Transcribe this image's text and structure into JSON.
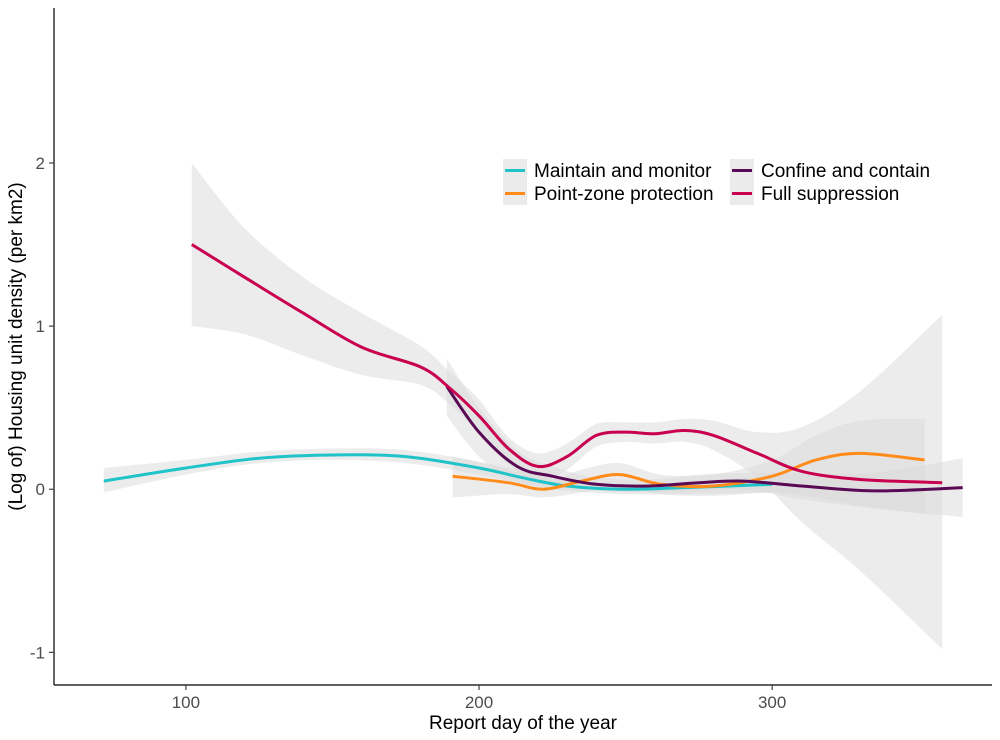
{
  "chart_data": {
    "type": "line",
    "title": "",
    "xlabel": "Report day of the year",
    "ylabel": "(Log of) Housing unit density (per km2)",
    "xlim": [
      55,
      375
    ],
    "ylim": [
      -1.2,
      2.95
    ],
    "x_ticks": [
      100,
      200,
      300
    ],
    "x_tick_labels": [
      "100",
      "200",
      "300"
    ],
    "y_ticks": [
      -1,
      0,
      1,
      2
    ],
    "y_tick_labels": [
      "-1",
      "0",
      "1",
      "2"
    ],
    "grid": false,
    "legend_position": "top-right",
    "series": [
      {
        "name": "Maintain and monitor",
        "color": "#1fc3c8",
        "x": [
          72,
          100,
          125,
          150,
          175,
          200,
          215,
          230,
          250,
          270,
          300
        ],
        "y": [
          0.05,
          0.13,
          0.19,
          0.21,
          0.2,
          0.13,
          0.07,
          0.02,
          0.0,
          0.01,
          0.03
        ],
        "lower": [
          -0.02,
          0.09,
          0.16,
          0.18,
          0.16,
          0.09,
          0.03,
          -0.01,
          -0.03,
          -0.03,
          -0.02
        ],
        "upper": [
          0.13,
          0.18,
          0.23,
          0.25,
          0.24,
          0.17,
          0.11,
          0.05,
          0.03,
          0.05,
          0.08
        ]
      },
      {
        "name": "Point-zone protection",
        "color": "#ff8c1a",
        "x": [
          191,
          210,
          222,
          235,
          248,
          262,
          280,
          300,
          315,
          330,
          352
        ],
        "y": [
          0.08,
          0.04,
          0.0,
          0.05,
          0.09,
          0.03,
          0.02,
          0.08,
          0.18,
          0.22,
          0.18
        ],
        "lower": [
          -0.05,
          -0.03,
          -0.05,
          -0.02,
          0.02,
          -0.03,
          -0.04,
          -0.02,
          -0.05,
          -0.1,
          -0.15
        ],
        "upper": [
          0.2,
          0.12,
          0.05,
          0.12,
          0.16,
          0.09,
          0.09,
          0.18,
          0.33,
          0.42,
          0.43
        ]
      },
      {
        "name": "Confine and contain",
        "color": "#5a0a55",
        "x": [
          189,
          200,
          213,
          225,
          240,
          258,
          275,
          290,
          310,
          335,
          365
        ],
        "y": [
          0.63,
          0.35,
          0.14,
          0.08,
          0.03,
          0.02,
          0.04,
          0.05,
          0.02,
          -0.01,
          0.01
        ],
        "lower": [
          0.45,
          0.2,
          0.05,
          0.02,
          -0.01,
          -0.02,
          -0.01,
          0.0,
          -0.06,
          -0.12,
          -0.17
        ],
        "upper": [
          0.8,
          0.5,
          0.24,
          0.14,
          0.07,
          0.06,
          0.09,
          0.1,
          0.1,
          0.1,
          0.19
        ]
      },
      {
        "name": "Full suppression",
        "color": "#c8004f",
        "x": [
          102,
          120,
          140,
          160,
          180,
          190,
          200,
          210,
          220,
          230,
          240,
          250,
          260,
          270,
          280,
          295,
          310,
          330,
          358
        ],
        "y": [
          1.5,
          1.3,
          1.08,
          0.87,
          0.75,
          0.62,
          0.45,
          0.25,
          0.14,
          0.2,
          0.33,
          0.35,
          0.34,
          0.36,
          0.33,
          0.22,
          0.11,
          0.06,
          0.04
        ],
        "lower": [
          1.0,
          0.95,
          0.82,
          0.7,
          0.64,
          0.52,
          0.34,
          0.15,
          0.05,
          0.12,
          0.26,
          0.29,
          0.28,
          0.29,
          0.24,
          0.07,
          -0.2,
          -0.5,
          -0.98
        ],
        "upper": [
          2.0,
          1.6,
          1.3,
          1.08,
          0.88,
          0.72,
          0.55,
          0.32,
          0.22,
          0.28,
          0.4,
          0.41,
          0.41,
          0.43,
          0.42,
          0.35,
          0.38,
          0.6,
          1.07
        ]
      }
    ]
  }
}
